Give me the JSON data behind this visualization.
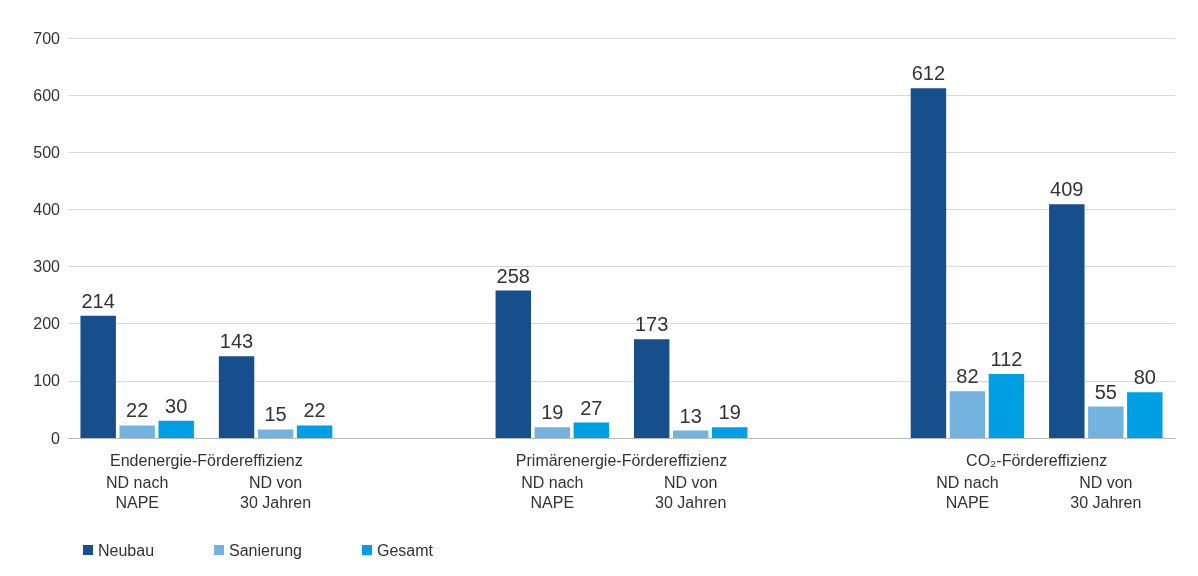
{
  "chart_data": {
    "type": "bar",
    "categories": [
      "ND nach\nNAPE",
      "ND von\n30 Jahren",
      null,
      "ND nach\nNAPE",
      "ND von\n30 Jahren",
      null,
      "ND nach\nNAPE",
      "ND von\n30 Jahren"
    ],
    "series": [
      {
        "name": "Neubau",
        "color": "#174e8c",
        "values": [
          214,
          143,
          null,
          258,
          173,
          null,
          612,
          409
        ]
      },
      {
        "name": "Sanierung",
        "color": "#74b3e0",
        "values": [
          22,
          15,
          null,
          19,
          13,
          null,
          82,
          55
        ]
      },
      {
        "name": "Gesamt",
        "color": "#009fe3",
        "values": [
          30,
          22,
          null,
          27,
          19,
          null,
          112,
          80
        ]
      }
    ],
    "annotations": [
      "Endenergie-Fördereffizienz",
      "Primärenergie-Fördereffizienz",
      "CO₂-Fördereffizienz"
    ],
    "ylim": [
      0,
      700
    ],
    "yticks": [
      0,
      100,
      200,
      300,
      400,
      500,
      600,
      700
    ],
    "grid": "y",
    "legend": "bottom left",
    "data_labels": true
  }
}
